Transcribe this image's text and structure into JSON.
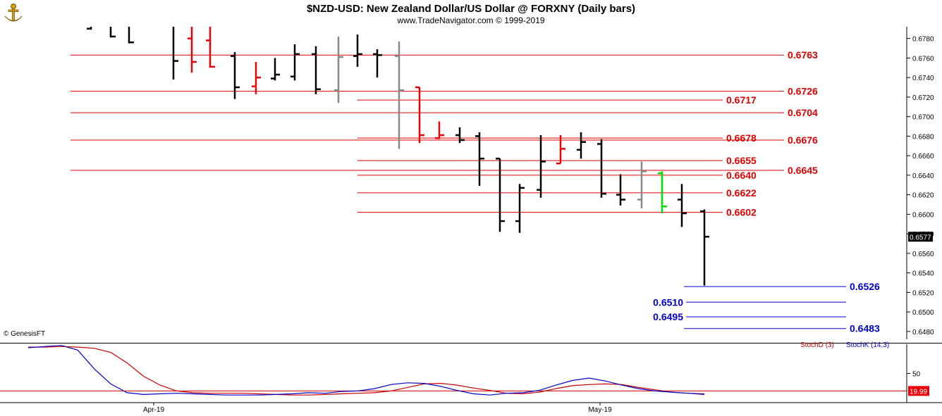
{
  "header": {
    "title": "$NZD-USD:  New Zealand Dollar/US Dollar @ FORXNY  (Daily bars)",
    "subtitle": "www.TradeNavigator.com © 1999-2019"
  },
  "footer": {
    "credit": "© GenesisFT"
  },
  "colors": {
    "bar_normal": "#000000",
    "bar_red": "#e8000a",
    "bar_gray": "#888888",
    "bar_green": "#00dd00",
    "level_red": "#dd0000",
    "level_blue": "#0000cc",
    "stoch_d": "#cc0000",
    "stoch_k": "#0000cc"
  },
  "chart_data": [
    {
      "type": "ohlc",
      "y_axis": {
        "ylim": [
          0.6472,
          0.6792
        ],
        "ticks": [
          "0.6780",
          "0.6760",
          "0.6740",
          "0.6720",
          "0.6700",
          "0.6680",
          "0.6660",
          "0.6640",
          "0.6620",
          "0.6600",
          "0.6560",
          "0.6540",
          "0.6520",
          "0.6500",
          "0.6480"
        ],
        "last_price_label": "0.6577",
        "partial_tick_label": "0.6580"
      },
      "x_axis": {
        "labels": [
          "Apr-19",
          "May-19"
        ]
      },
      "bars": [
        {
          "o": 0.679,
          "h": 0.68,
          "l": 0.6789,
          "c": 0.6795,
          "color": "black"
        },
        {
          "o": 0.68,
          "h": 0.68,
          "l": 0.6781,
          "c": 0.6782,
          "color": "black"
        },
        {
          "o": 0.6795,
          "h": 0.68,
          "l": 0.6775,
          "c": 0.6776,
          "color": "black"
        },
        {
          "o": 0.68,
          "h": 0.68,
          "l": 0.6738,
          "c": 0.6757,
          "color": "black"
        },
        {
          "o": 0.678,
          "h": 0.68,
          "l": 0.6745,
          "c": 0.6756,
          "color": "red"
        },
        {
          "o": 0.6778,
          "h": 0.68,
          "l": 0.675,
          "c": 0.6751,
          "color": "red"
        },
        {
          "o": 0.6762,
          "h": 0.6766,
          "l": 0.6718,
          "c": 0.673,
          "color": "black"
        },
        {
          "o": 0.6731,
          "h": 0.6756,
          "l": 0.6723,
          "c": 0.674,
          "color": "red"
        },
        {
          "o": 0.6739,
          "h": 0.676,
          "l": 0.6737,
          "c": 0.6743,
          "color": "black"
        },
        {
          "o": 0.6741,
          "h": 0.6774,
          "l": 0.6737,
          "c": 0.6764,
          "color": "black"
        },
        {
          "o": 0.6764,
          "h": 0.6772,
          "l": 0.6723,
          "c": 0.6728,
          "color": "black"
        },
        {
          "o": 0.6727,
          "h": 0.6782,
          "l": 0.6714,
          "c": 0.6761,
          "color": "gray"
        },
        {
          "o": 0.6762,
          "h": 0.6784,
          "l": 0.6751,
          "c": 0.6764,
          "color": "black"
        },
        {
          "o": 0.6764,
          "h": 0.6769,
          "l": 0.674,
          "c": 0.6763,
          "color": "black"
        },
        {
          "o": 0.6762,
          "h": 0.6777,
          "l": 0.6667,
          "c": 0.6727,
          "color": "gray"
        },
        {
          "o": 0.673,
          "h": 0.673,
          "l": 0.6673,
          "c": 0.6681,
          "color": "red"
        },
        {
          "o": 0.6678,
          "h": 0.6695,
          "l": 0.6677,
          "c": 0.6681,
          "color": "red"
        },
        {
          "o": 0.6681,
          "h": 0.6689,
          "l": 0.6673,
          "c": 0.6676,
          "color": "black"
        },
        {
          "o": 0.668,
          "h": 0.6684,
          "l": 0.6629,
          "c": 0.6657,
          "color": "black"
        },
        {
          "o": 0.6657,
          "h": 0.6657,
          "l": 0.6582,
          "c": 0.6593,
          "color": "black"
        },
        {
          "o": 0.6593,
          "h": 0.6631,
          "l": 0.6581,
          "c": 0.6627,
          "color": "black"
        },
        {
          "o": 0.6625,
          "h": 0.6681,
          "l": 0.6617,
          "c": 0.6654,
          "color": "black"
        },
        {
          "o": 0.6652,
          "h": 0.6681,
          "l": 0.6652,
          "c": 0.6667,
          "color": "red"
        },
        {
          "o": 0.6666,
          "h": 0.6684,
          "l": 0.6657,
          "c": 0.6674,
          "color": "black"
        },
        {
          "o": 0.6672,
          "h": 0.6677,
          "l": 0.6617,
          "c": 0.6621,
          "color": "black"
        },
        {
          "o": 0.662,
          "h": 0.6641,
          "l": 0.6609,
          "c": 0.6615,
          "color": "black"
        },
        {
          "o": 0.6615,
          "h": 0.6654,
          "l": 0.6606,
          "c": 0.6644,
          "color": "gray"
        },
        {
          "o": 0.6642,
          "h": 0.6644,
          "l": 0.6601,
          "c": 0.6608,
          "color": "green"
        },
        {
          "o": 0.6615,
          "h": 0.6631,
          "l": 0.6587,
          "c": 0.6601,
          "color": "black"
        },
        {
          "o": 0.6603,
          "h": 0.6605,
          "l": 0.6527,
          "c": 0.6577,
          "color": "black"
        }
      ],
      "levels": [
        {
          "label": "0.6763",
          "value": 0.6763,
          "color": "red"
        },
        {
          "label": "0.6726",
          "value": 0.6726,
          "color": "red"
        },
        {
          "label": "0.6717",
          "value": 0.6717,
          "color": "red"
        },
        {
          "label": "0.6704",
          "value": 0.6704,
          "color": "red"
        },
        {
          "label": "0.6678",
          "value": 0.6678,
          "color": "red"
        },
        {
          "label": "0.6676",
          "value": 0.6676,
          "color": "red"
        },
        {
          "label": "0.6655",
          "value": 0.6655,
          "color": "red"
        },
        {
          "label": "0.6640",
          "value": 0.664,
          "color": "red"
        },
        {
          "label": "0.6645",
          "value": 0.6645,
          "color": "red"
        },
        {
          "label": "0.6622",
          "value": 0.6622,
          "color": "red"
        },
        {
          "label": "0.6602",
          "value": 0.6602,
          "color": "red"
        },
        {
          "label": "0.6526",
          "value": 0.6526,
          "color": "blue"
        },
        {
          "label": "0.6510",
          "value": 0.651,
          "color": "blue"
        },
        {
          "label": "0.6495",
          "value": 0.6495,
          "color": "blue"
        },
        {
          "label": "0.6483",
          "value": 0.6483,
          "color": "blue"
        }
      ]
    },
    {
      "type": "line",
      "legend": [
        "StochD (3)",
        "StochK (14,3)"
      ],
      "ylim": [
        0,
        100
      ],
      "ticks": [
        "50"
      ],
      "reference_line": 20,
      "last_value_label": "19.99",
      "series": [
        {
          "name": "StochD (3)",
          "color": "red",
          "values": [
            95,
            95,
            96,
            95,
            93,
            86,
            68,
            45,
            30,
            20,
            17,
            16,
            16,
            16,
            15,
            14,
            13,
            13,
            14,
            15,
            16,
            17,
            20,
            26,
            32,
            33,
            30,
            25,
            21,
            16,
            15,
            18,
            24,
            29,
            31,
            32,
            31,
            26,
            22,
            18,
            16,
            15
          ]
        },
        {
          "name": "StochK (14,3)",
          "color": "blue",
          "values": [
            94,
            96,
            98,
            90,
            58,
            32,
            17,
            14,
            15,
            16,
            15,
            14,
            13,
            13,
            13,
            14,
            15,
            17,
            16,
            19,
            20,
            24,
            31,
            34,
            33,
            28,
            21,
            15,
            13,
            16,
            17,
            21,
            30,
            38,
            42,
            37,
            30,
            24,
            20,
            18,
            16,
            14
          ]
        }
      ]
    }
  ]
}
